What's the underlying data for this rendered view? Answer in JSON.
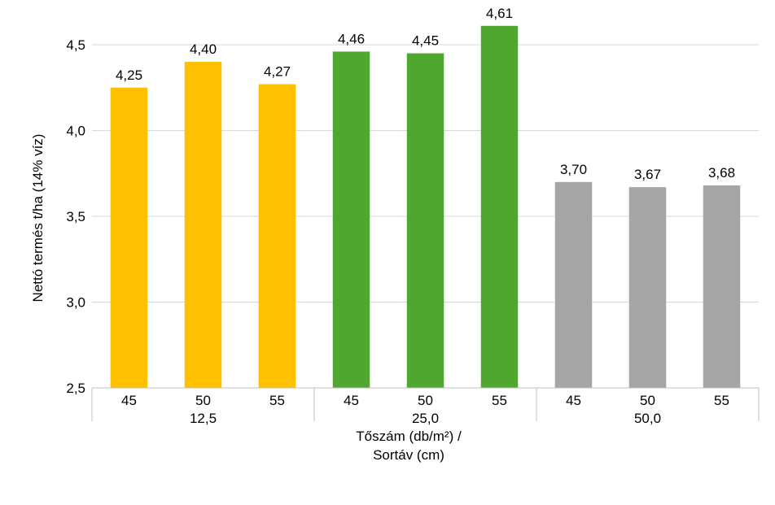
{
  "chart_data": {
    "type": "bar",
    "ylabel": "Nettó termés t/ha (14% víz)",
    "xlabel_lines": [
      "Tőszám (db/m²) /",
      "Sortáv (cm)"
    ],
    "ylim": [
      2.5,
      4.7
    ],
    "yticks": [
      "2,5",
      "3,0",
      "3,5",
      "4,0",
      "4,5"
    ],
    "ytick_values": [
      2.5,
      3.0,
      3.5,
      4.0,
      4.5
    ],
    "grid": true,
    "legend": "none",
    "groups": [
      {
        "label": "12,5",
        "color": "#FFC000",
        "bars": [
          {
            "category": "45",
            "value": 4.25,
            "label": "4,25"
          },
          {
            "category": "50",
            "value": 4.4,
            "label": "4,40"
          },
          {
            "category": "55",
            "value": 4.27,
            "label": "4,27"
          }
        ]
      },
      {
        "label": "25,0",
        "color": "#4EA72E",
        "bars": [
          {
            "category": "45",
            "value": 4.46,
            "label": "4,46"
          },
          {
            "category": "50",
            "value": 4.45,
            "label": "4,45"
          },
          {
            "category": "55",
            "value": 4.61,
            "label": "4,61"
          }
        ]
      },
      {
        "label": "50,0",
        "color": "#A5A5A5",
        "bars": [
          {
            "category": "45",
            "value": 3.7,
            "label": "3,70"
          },
          {
            "category": "50",
            "value": 3.67,
            "label": "3,67"
          },
          {
            "category": "55",
            "value": 3.68,
            "label": "3,68"
          }
        ]
      }
    ]
  }
}
